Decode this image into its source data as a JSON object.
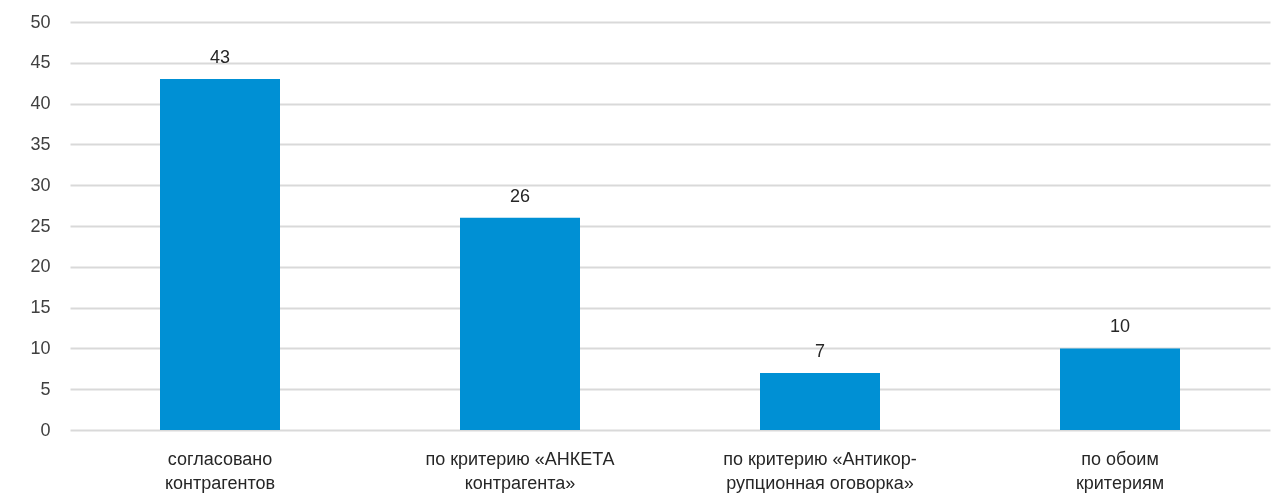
{
  "chart_data": {
    "type": "bar",
    "categories": [
      "согласовано\nконтрагентов",
      "по критерию «АНКЕТА\nконтрагента»",
      "по критерию «Антикор-\nрупционная оговорка»",
      "по обоим\nкритериям"
    ],
    "values": [
      43,
      26,
      7,
      10
    ],
    "color": "#0090d4",
    "ylim": [
      0,
      50
    ],
    "yticks": [
      0,
      5,
      10,
      15,
      20,
      25,
      30,
      35,
      40,
      45,
      50
    ],
    "grid": "y",
    "data_labels": true
  }
}
